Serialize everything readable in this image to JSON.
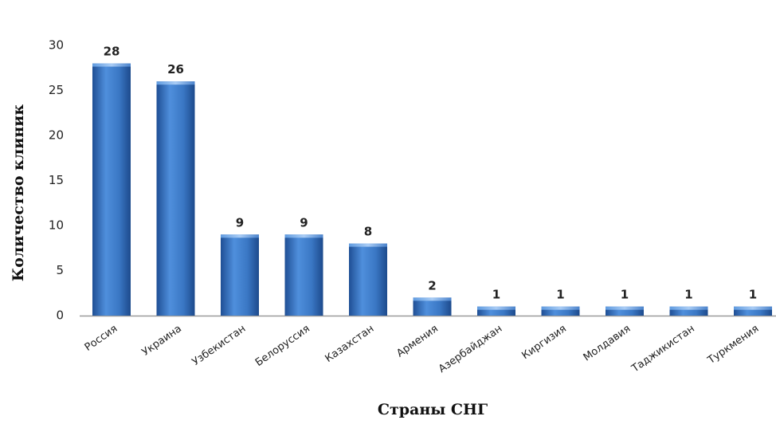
{
  "chart_data": {
    "type": "bar",
    "title": "",
    "xlabel": "Страны СНГ",
    "ylabel": "Количество клиник",
    "ylim": [
      0,
      30
    ],
    "yticks": [
      "0",
      "5",
      "10",
      "15",
      "20",
      "25",
      "30"
    ],
    "categories": [
      "Россия",
      "Украина",
      "Узбекистан",
      "Белоруссия",
      "Казахстан",
      "Армения",
      "Азербайджан",
      "Киргизия",
      "Молдавия",
      "Таджикистан",
      "Туркмения"
    ],
    "values": [
      28,
      26,
      9,
      9,
      8,
      2,
      1,
      1,
      1,
      1,
      1
    ],
    "data_labels": [
      "28",
      "26",
      "9",
      "9",
      "8",
      "2",
      "1",
      "1",
      "1",
      "1",
      "1"
    ],
    "grid": false,
    "legend": "none",
    "bar_color": "#3b78c8"
  }
}
